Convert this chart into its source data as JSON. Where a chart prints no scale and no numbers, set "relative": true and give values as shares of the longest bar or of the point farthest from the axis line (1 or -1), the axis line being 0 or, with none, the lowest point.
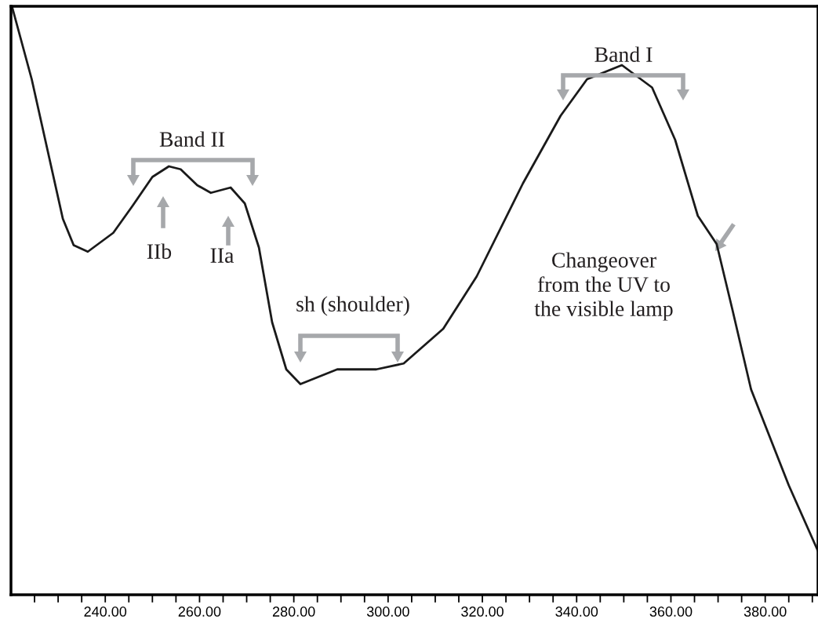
{
  "chart_data": {
    "type": "line",
    "relative": true,
    "x": [
      220.2,
      224.4,
      231.0,
      233.3,
      236.3,
      241.7,
      245.8,
      250.0,
      253.5,
      256.0,
      259.5,
      262.4,
      266.6,
      269.6,
      272.6,
      275.4,
      278.4,
      281.4,
      289.2,
      297.5,
      303.3,
      311.7,
      318.8,
      328.6,
      336.6,
      342.2,
      349.6,
      356.0,
      360.9,
      365.7,
      369.7,
      373.0,
      377.0,
      385.0,
      391.1
    ],
    "series": [
      {
        "color": "#1a1a1a",
        "values": [
          1.0,
          0.876,
          0.639,
          0.594,
          0.583,
          0.615,
          0.661,
          0.71,
          0.728,
          0.723,
          0.696,
          0.683,
          0.692,
          0.665,
          0.59,
          0.463,
          0.383,
          0.358,
          0.383,
          0.383,
          0.393,
          0.452,
          0.541,
          0.699,
          0.814,
          0.876,
          0.9,
          0.862,
          0.773,
          0.644,
          0.596,
          0.486,
          0.349,
          0.186,
          0.076
        ]
      }
    ],
    "xlim": [
      220,
      391.2
    ],
    "xticks": [
      {
        "value": 225,
        "label": null
      },
      {
        "value": 230,
        "label": null
      },
      {
        "value": 235,
        "label": null
      },
      {
        "value": 240,
        "label": "240.00"
      },
      {
        "value": 245,
        "label": null
      },
      {
        "value": 250,
        "label": null
      },
      {
        "value": 255,
        "label": null
      },
      {
        "value": 260,
        "label": "260.00"
      },
      {
        "value": 265,
        "label": null
      },
      {
        "value": 270,
        "label": null
      },
      {
        "value": 275,
        "label": null
      },
      {
        "value": 280,
        "label": "280.00"
      },
      {
        "value": 285,
        "label": null
      },
      {
        "value": 290,
        "label": null
      },
      {
        "value": 295,
        "label": null
      },
      {
        "value": 300,
        "label": "300.00"
      },
      {
        "value": 305,
        "label": null
      },
      {
        "value": 310,
        "label": null
      },
      {
        "value": 315,
        "label": null
      },
      {
        "value": 320,
        "label": "320.00"
      },
      {
        "value": 325,
        "label": null
      },
      {
        "value": 330,
        "label": null
      },
      {
        "value": 335,
        "label": null
      },
      {
        "value": 340,
        "label": "340.00"
      },
      {
        "value": 345,
        "label": null
      },
      {
        "value": 350,
        "label": null
      },
      {
        "value": 355,
        "label": null
      },
      {
        "value": 360,
        "label": "360.00"
      },
      {
        "value": 365,
        "label": null
      },
      {
        "value": 370,
        "label": null
      },
      {
        "value": 375,
        "label": null
      },
      {
        "value": 380,
        "label": "380.00"
      },
      {
        "value": 385,
        "label": null
      },
      {
        "value": 390,
        "label": null
      }
    ],
    "tick_labels": "x",
    "annotations": [
      "Band I",
      "Band II",
      "IIb",
      "IIa",
      "sh (shoulder)",
      "Changeover\nfrom the UV to\nthe visible lamp"
    ]
  }
}
